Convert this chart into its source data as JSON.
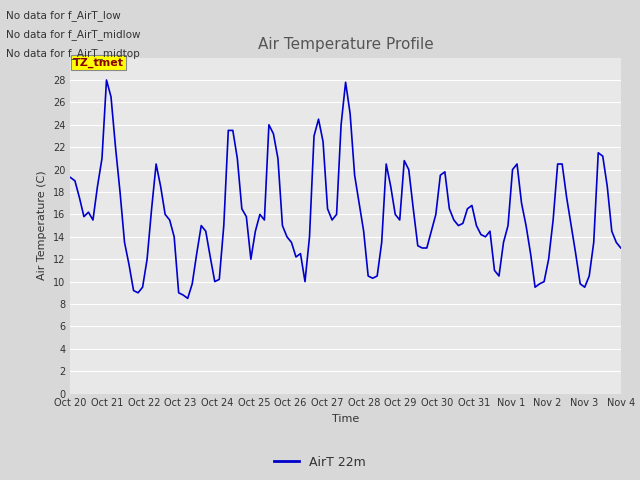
{
  "title": "Air Temperature Profile",
  "xlabel": "Time",
  "ylabel": "Air Temperature (C)",
  "ylim": [
    0,
    30
  ],
  "yticks": [
    0,
    2,
    4,
    6,
    8,
    10,
    12,
    14,
    16,
    18,
    20,
    22,
    24,
    26,
    28
  ],
  "line_color": "#0000cc",
  "line_width": 1.2,
  "legend_label": "AirT 22m",
  "no_data_texts": [
    "No data for f_AirT_low",
    "No data for f_AirT_midlow",
    "No data for f_AirT_midtop"
  ],
  "tz_label": "TZ_tmet",
  "x_tick_labels": [
    "Oct 20",
    "Oct 21",
    "Oct 22",
    "Oct 23",
    "Oct 24",
    "Oct 25",
    "Oct 26",
    "Oct 27",
    "Oct 28",
    "Oct 29",
    "Oct 30",
    "Oct 31",
    "Nov 1",
    "Nov 2",
    "Nov 3",
    "Nov 4"
  ],
  "figure_bg": "#d8d8d8",
  "plot_bg": "#e8e8e8",
  "grid_color": "#ffffff",
  "tick_color": "#333333",
  "title_color": "#555555",
  "text_color": "#333333",
  "y_data": [
    19.3,
    19.0,
    17.5,
    15.8,
    16.2,
    15.5,
    18.5,
    21.0,
    28.0,
    26.5,
    22.0,
    18.0,
    13.5,
    11.5,
    9.2,
    9.0,
    9.5,
    12.0,
    16.5,
    20.5,
    18.5,
    16.0,
    15.5,
    14.0,
    9.0,
    8.8,
    8.5,
    9.8,
    12.5,
    15.0,
    14.5,
    12.2,
    10.0,
    10.2,
    15.0,
    23.5,
    23.5,
    21.0,
    16.5,
    15.8,
    12.0,
    14.5,
    16.0,
    15.5,
    24.0,
    23.2,
    21.0,
    15.0,
    14.0,
    13.5,
    12.2,
    12.5,
    10.0,
    14.0,
    23.0,
    24.5,
    22.5,
    16.5,
    15.5,
    16.0,
    24.0,
    27.8,
    25.0,
    19.5,
    17.0,
    14.5,
    10.5,
    10.3,
    10.5,
    13.5,
    20.5,
    18.5,
    16.0,
    15.5,
    20.8,
    20.0,
    16.5,
    13.2,
    13.0,
    13.0,
    14.5,
    16.0,
    19.5,
    19.8,
    16.5,
    15.5,
    15.0,
    15.2,
    16.5,
    16.8,
    15.0,
    14.2,
    14.0,
    14.5,
    11.0,
    10.5,
    13.5,
    15.0,
    20.0,
    20.5,
    17.0,
    15.0,
    12.5,
    9.5,
    9.8,
    10.0,
    12.0,
    15.5,
    20.5,
    20.5,
    17.5,
    15.0,
    12.5,
    9.8,
    9.5,
    10.5,
    13.5,
    21.5,
    21.2,
    18.5,
    14.5,
    13.5,
    13.0
  ]
}
